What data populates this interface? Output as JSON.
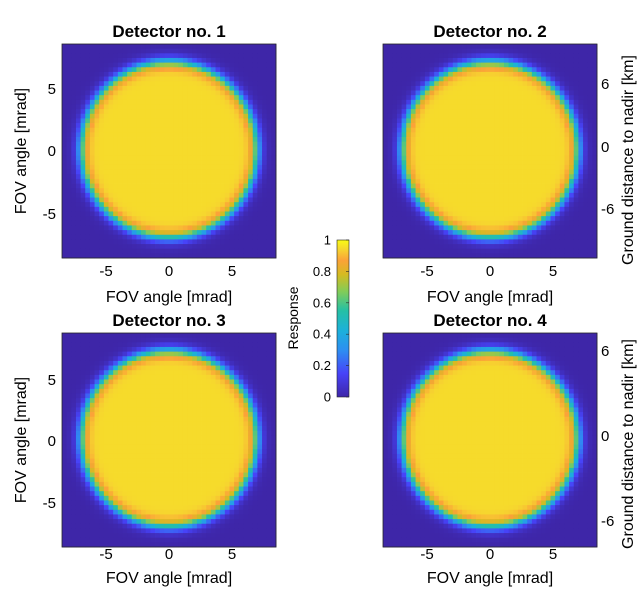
{
  "chart_data": [
    {
      "type": "heatmap",
      "title": "Detector no. 1",
      "xlabel": "FOV angle [mrad]",
      "ylabel": "FOV angle [mrad]",
      "xlim": [
        -8.5,
        8.5
      ],
      "ylim": [
        -8.5,
        8.5
      ],
      "xticks": [
        -5,
        0,
        5
      ],
      "yticks": [
        -5,
        0,
        5
      ],
      "response_outside": 0.0,
      "response_inside": 0.95,
      "disk_center": [
        0,
        0.1
      ],
      "disk_radius_mrad": 7.0
    },
    {
      "type": "heatmap",
      "title": "Detector no. 2",
      "xlabel": "FOV angle [mrad]",
      "ylabel_right": "Ground distance to nadir [km]",
      "xlim": [
        -8.5,
        8.5
      ],
      "ylim": [
        -8.5,
        8.5
      ],
      "xticks": [
        -5,
        0,
        5
      ],
      "right_yticks": [
        6,
        0,
        -6
      ],
      "response_outside": 0.0,
      "response_inside": 0.95,
      "disk_center": [
        0,
        0.1
      ],
      "disk_radius_mrad": 7.0
    },
    {
      "type": "heatmap",
      "title": "Detector no. 3",
      "xlabel": "FOV angle [mrad]",
      "ylabel": "FOV angle [mrad]",
      "xlim": [
        -8.5,
        8.5
      ],
      "ylim": [
        -8.5,
        8.5
      ],
      "xticks": [
        -5,
        0,
        5
      ],
      "yticks": [
        -5,
        0,
        5
      ],
      "response_outside": 0.0,
      "response_inside": 0.95,
      "disk_center": [
        0,
        0.1
      ],
      "disk_radius_mrad": 7.0
    },
    {
      "type": "heatmap",
      "title": "Detector no. 4",
      "xlabel": "FOV angle [mrad]",
      "ylabel_right": "Ground distance to nadir [km]",
      "xlim": [
        -8.5,
        8.5
      ],
      "ylim": [
        -8.5,
        8.5
      ],
      "xticks": [
        -5,
        0,
        5
      ],
      "right_yticks": [
        6,
        0,
        -6
      ],
      "response_outside": 0.0,
      "response_inside": 0.95,
      "disk_center": [
        0,
        0.1
      ],
      "disk_radius_mrad": 7.0
    }
  ],
  "colorbar": {
    "label": "Response",
    "ticks": [
      0,
      0.2,
      0.4,
      0.6,
      0.8,
      1
    ],
    "tick_labels": [
      "0",
      "0.2",
      "0.4",
      "0.6",
      "0.8",
      "1"
    ],
    "colormap": "parula",
    "colors": [
      "#3e26a8",
      "#4743f8",
      "#2d8ff1",
      "#1cb0db",
      "#25c0a5",
      "#81cc59",
      "#d5bb21",
      "#fba238",
      "#f6d52f",
      "#f9fb15"
    ]
  }
}
